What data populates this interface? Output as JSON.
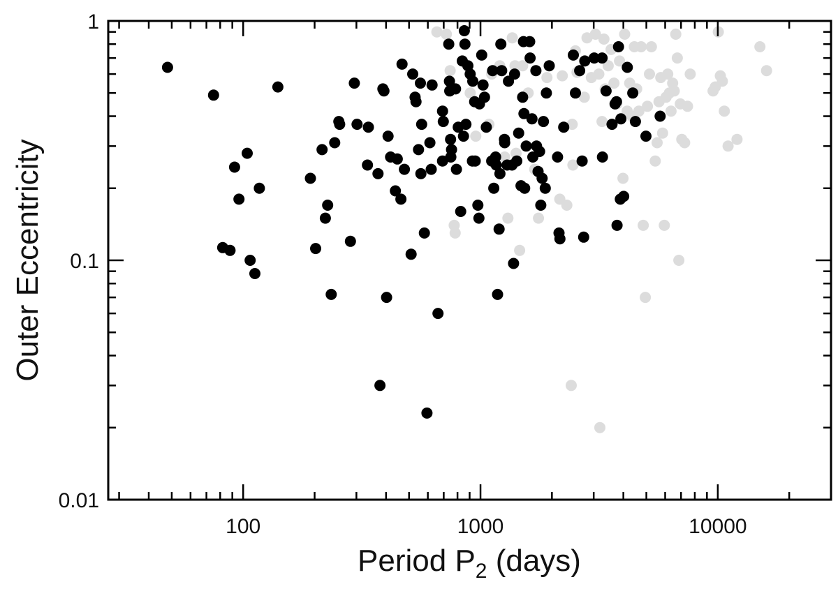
{
  "chart_data": {
    "type": "scatter",
    "title": "",
    "xlabel": "Period P",
    "xlabel_sub": "2",
    "xlabel_suffix": " (days)",
    "ylabel": "Outer Eccentricity",
    "x_scale": "log",
    "y_scale": "log",
    "xlim": [
      27,
      30000
    ],
    "ylim": [
      0.01,
      1
    ],
    "x_tick_labels": [
      "100",
      "1000",
      "10000"
    ],
    "y_tick_labels": [
      "0.01",
      "0.1",
      "1"
    ],
    "grid": false,
    "legend": "none",
    "series": [
      {
        "color": "#000000",
        "points": [
          [
            48,
            0.64
          ],
          [
            75,
            0.49
          ],
          [
            140,
            0.53
          ],
          [
            82,
            0.113
          ],
          [
            88,
            0.11
          ],
          [
            92,
            0.245
          ],
          [
            96,
            0.18
          ],
          [
            104,
            0.28
          ],
          [
            107,
            0.1
          ],
          [
            112,
            0.088
          ],
          [
            117,
            0.2
          ],
          [
            192,
            0.22
          ],
          [
            202,
            0.112
          ],
          [
            215,
            0.29
          ],
          [
            222,
            0.15
          ],
          [
            227,
            0.17
          ],
          [
            235,
            0.072
          ],
          [
            243,
            0.31
          ],
          [
            253,
            0.38
          ],
          [
            255,
            0.37
          ],
          [
            283,
            0.12
          ],
          [
            294,
            0.55
          ],
          [
            302,
            0.37
          ],
          [
            334,
            0.25
          ],
          [
            337,
            0.36
          ],
          [
            370,
            0.23
          ],
          [
            377,
            0.03
          ],
          [
            388,
            0.52
          ],
          [
            392,
            0.51
          ],
          [
            402,
            0.07
          ],
          [
            408,
            0.33
          ],
          [
            418,
            0.27
          ],
          [
            438,
            0.195
          ],
          [
            446,
            0.265
          ],
          [
            462,
            0.18
          ],
          [
            467,
            0.66
          ],
          [
            478,
            0.24
          ],
          [
            510,
            0.106
          ],
          [
            518,
            0.6
          ],
          [
            530,
            0.48
          ],
          [
            535,
            0.46
          ],
          [
            548,
            0.29
          ],
          [
            558,
            0.55
          ],
          [
            561,
            0.23
          ],
          [
            565,
            0.37
          ],
          [
            580,
            0.13
          ],
          [
            595,
            0.023
          ],
          [
            612,
            0.31
          ],
          [
            620,
            0.24
          ],
          [
            625,
            0.54
          ],
          [
            662,
            0.06
          ],
          [
            692,
            0.26
          ],
          [
            692,
            0.42
          ],
          [
            697,
            0.38
          ],
          [
            735,
            0.8
          ],
          [
            740,
            0.56
          ],
          [
            742,
            0.51
          ],
          [
            748,
            0.32
          ],
          [
            750,
            0.27
          ],
          [
            755,
            0.29
          ],
          [
            785,
            0.52
          ],
          [
            792,
            0.24
          ],
          [
            806,
            0.36
          ],
          [
            825,
            0.16
          ],
          [
            838,
            0.68
          ],
          [
            848,
            0.33
          ],
          [
            855,
            0.91
          ],
          [
            860,
            0.8
          ],
          [
            868,
            0.37
          ],
          [
            885,
            0.65
          ],
          [
            905,
            0.6
          ],
          [
            925,
            0.26
          ],
          [
            928,
            0.56
          ],
          [
            945,
            0.46
          ],
          [
            950,
            0.26
          ],
          [
            975,
            0.17
          ],
          [
            985,
            0.15
          ],
          [
            990,
            0.45
          ],
          [
            1012,
            0.72
          ],
          [
            1025,
            0.54
          ],
          [
            1040,
            0.48
          ],
          [
            1058,
            0.36
          ],
          [
            1115,
            0.26
          ],
          [
            1125,
            0.62
          ],
          [
            1138,
            0.2
          ],
          [
            1158,
            0.27
          ],
          [
            1165,
            0.25
          ],
          [
            1180,
            0.072
          ],
          [
            1198,
            0.135
          ],
          [
            1208,
            0.23
          ],
          [
            1218,
            0.8
          ],
          [
            1228,
            0.62
          ],
          [
            1262,
            0.32
          ],
          [
            1265,
            0.31
          ],
          [
            1295,
            0.25
          ],
          [
            1312,
            0.56
          ],
          [
            1358,
            0.25
          ],
          [
            1378,
            0.097
          ],
          [
            1392,
            0.6
          ],
          [
            1422,
            0.26
          ],
          [
            1448,
            0.34
          ],
          [
            1482,
            0.205
          ],
          [
            1505,
            0.48
          ],
          [
            1518,
            0.82
          ],
          [
            1525,
            0.41
          ],
          [
            1535,
            0.2
          ],
          [
            1558,
            0.3
          ],
          [
            1612,
            0.82
          ],
          [
            1618,
            0.7
          ],
          [
            1648,
            0.39
          ],
          [
            1662,
            0.27
          ],
          [
            1712,
            0.62
          ],
          [
            1722,
            0.3
          ],
          [
            1748,
            0.235
          ],
          [
            1775,
            0.285
          ],
          [
            1795,
            0.17
          ],
          [
            1818,
            0.22
          ],
          [
            1842,
            0.38
          ],
          [
            1875,
            0.2
          ],
          [
            1895,
            0.5
          ],
          [
            1948,
            0.65
          ],
          [
            2112,
            0.27
          ],
          [
            2142,
            0.13
          ],
          [
            2162,
            0.123
          ],
          [
            2242,
            0.36
          ],
          [
            2462,
            0.72
          ],
          [
            2512,
            0.5
          ],
          [
            2618,
            0.62
          ],
          [
            2682,
            0.26
          ],
          [
            2722,
            0.125
          ],
          [
            2752,
            0.68
          ],
          [
            3015,
            0.7
          ],
          [
            3255,
            0.7
          ],
          [
            3265,
            0.27
          ],
          [
            3382,
            0.51
          ],
          [
            3582,
            0.37
          ],
          [
            3692,
            0.45
          ],
          [
            3742,
            0.46
          ],
          [
            3762,
            0.14
          ],
          [
            3815,
            0.78
          ],
          [
            3885,
            0.18
          ],
          [
            3905,
            0.39
          ],
          [
            4012,
            0.185
          ],
          [
            4155,
            0.64
          ],
          [
            4382,
            0.5
          ],
          [
            4495,
            0.38
          ],
          [
            4982,
            0.33
          ],
          [
            5715,
            0.4
          ]
        ]
      },
      {
        "color": "#dcdcdc",
        "points": [
          [
            655,
            0.9
          ],
          [
            718,
            0.88
          ],
          [
            745,
            0.62
          ],
          [
            775,
            0.14
          ],
          [
            782,
            0.13
          ],
          [
            905,
            0.5
          ],
          [
            955,
            0.33
          ],
          [
            1085,
            0.37
          ],
          [
            1115,
            0.6
          ],
          [
            1205,
            0.65
          ],
          [
            1265,
            0.27
          ],
          [
            1305,
            0.15
          ],
          [
            1362,
            0.85
          ],
          [
            1398,
            0.65
          ],
          [
            1412,
            0.28
          ],
          [
            1462,
            0.11
          ],
          [
            1505,
            0.65
          ],
          [
            1588,
            0.5
          ],
          [
            1692,
            0.24
          ],
          [
            1755,
            0.15
          ],
          [
            1905,
            0.58
          ],
          [
            2158,
            0.18
          ],
          [
            2212,
            0.59
          ],
          [
            2312,
            0.17
          ],
          [
            2412,
            0.03
          ],
          [
            2435,
            0.37
          ],
          [
            2452,
            0.25
          ],
          [
            2512,
            0.75
          ],
          [
            2552,
            0.61
          ],
          [
            2738,
            0.48
          ],
          [
            2812,
            0.85
          ],
          [
            2932,
            0.58
          ],
          [
            3052,
            0.88
          ],
          [
            3152,
            0.6
          ],
          [
            3185,
            0.02
          ],
          [
            3252,
            0.38
          ],
          [
            3312,
            0.84
          ],
          [
            3352,
            0.52
          ],
          [
            3452,
            0.65
          ],
          [
            3552,
            0.76
          ],
          [
            3652,
            0.55
          ],
          [
            3752,
            0.45
          ],
          [
            3852,
            0.68
          ],
          [
            3985,
            0.22
          ],
          [
            4052,
            0.88
          ],
          [
            4152,
            0.42
          ],
          [
            4252,
            0.55
          ],
          [
            4352,
            0.4
          ],
          [
            4452,
            0.78
          ],
          [
            4552,
            0.52
          ],
          [
            4652,
            0.42
          ],
          [
            4752,
            0.78
          ],
          [
            4852,
            0.14
          ],
          [
            4952,
            0.07
          ],
          [
            5052,
            0.44
          ],
          [
            5152,
            0.6
          ],
          [
            5252,
            0.78
          ],
          [
            5452,
            0.26
          ],
          [
            5552,
            0.31
          ],
          [
            5652,
            0.46
          ],
          [
            5752,
            0.58
          ],
          [
            5852,
            0.34
          ],
          [
            5952,
            0.14
          ],
          [
            6052,
            0.48
          ],
          [
            6152,
            0.6
          ],
          [
            6252,
            0.5
          ],
          [
            6352,
            0.42
          ],
          [
            6452,
            0.55
          ],
          [
            6552,
            0.51
          ],
          [
            6652,
            0.88
          ],
          [
            6752,
            0.7
          ],
          [
            6852,
            0.1
          ],
          [
            6952,
            0.45
          ],
          [
            7052,
            0.32
          ],
          [
            7252,
            0.31
          ],
          [
            7452,
            0.44
          ],
          [
            7652,
            0.6
          ],
          [
            9552,
            0.51
          ],
          [
            9752,
            0.53
          ],
          [
            10052,
            0.9
          ],
          [
            10252,
            0.59
          ],
          [
            10452,
            0.56
          ],
          [
            10652,
            0.42
          ],
          [
            11052,
            0.3
          ],
          [
            12052,
            0.32
          ],
          [
            15052,
            0.78
          ],
          [
            16052,
            0.62
          ]
        ]
      }
    ]
  }
}
